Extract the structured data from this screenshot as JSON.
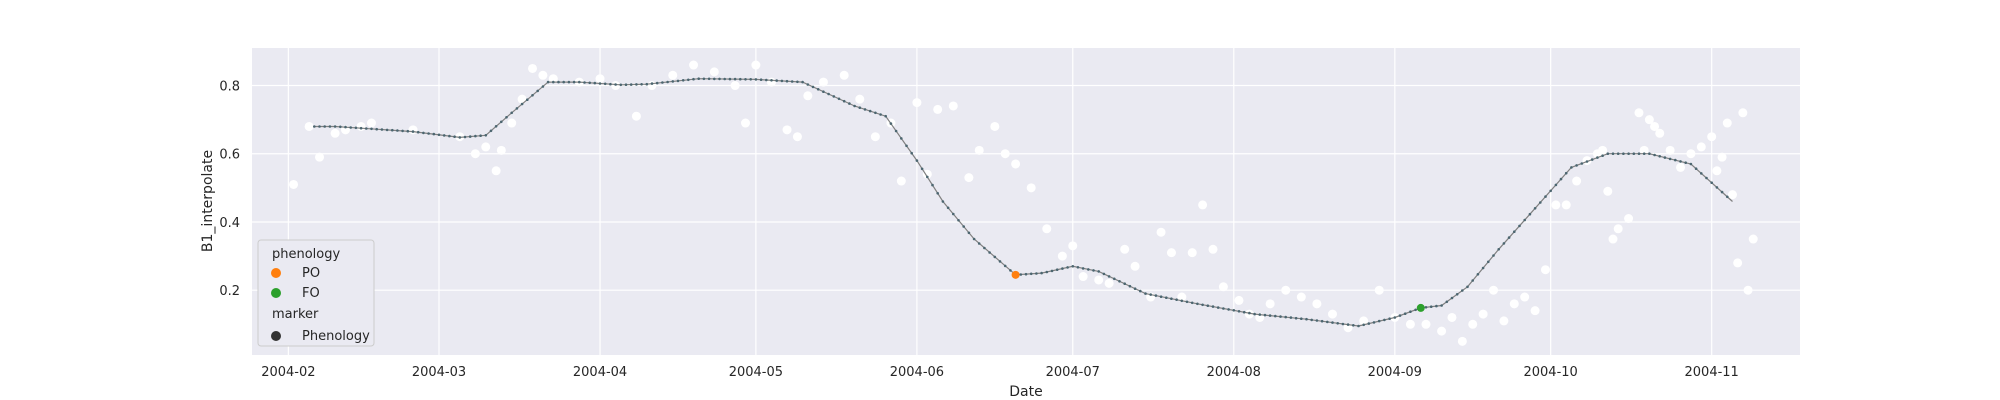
{
  "chart_data": {
    "type": "scatter",
    "xlabel": "Date",
    "ylabel": "B1_interpolate",
    "grid": true,
    "x_ticks": [
      "2004-02",
      "2004-03",
      "2004-04",
      "2004-05",
      "2004-06",
      "2004-07",
      "2004-08",
      "2004-09",
      "2004-10",
      "2004-11"
    ],
    "y_ticks": [
      "0.2",
      "0.4",
      "0.6",
      "0.8"
    ],
    "xlim": [
      "2004-01-25",
      "2004-11-18"
    ],
    "ylim": [
      0.01,
      0.91
    ],
    "legend": {
      "placement": "lower-left",
      "title_hue": "phenology",
      "title_marker": "marker",
      "entries": [
        {
          "label": "PO",
          "color": "#ff7f0e"
        },
        {
          "label": "FO",
          "color": "#2ca02c"
        },
        {
          "label": "Phenology",
          "color": "#333333"
        }
      ]
    },
    "colors": {
      "background": "#eaeaf2",
      "grid": "#ffffff",
      "scatter": "#ffffff",
      "line": "#808080",
      "smooth_markers": "#4c6670"
    },
    "series": [
      {
        "type": "line",
        "values": [
          [
            "2004-02-06",
            0.68
          ],
          [
            "2004-02-10",
            0.68
          ],
          [
            "2004-02-15",
            0.675
          ],
          [
            "2004-02-25",
            0.665
          ],
          [
            "2004-03-05",
            0.648
          ],
          [
            "2004-03-10",
            0.654
          ],
          [
            "2004-03-15",
            0.72
          ],
          [
            "2004-03-22",
            0.81
          ],
          [
            "2004-03-28",
            0.81
          ],
          [
            "2004-04-05",
            0.802
          ],
          [
            "2004-04-10",
            0.804
          ],
          [
            "2004-04-20",
            0.82
          ],
          [
            "2004-05-01",
            0.818
          ],
          [
            "2004-05-10",
            0.81
          ],
          [
            "2004-05-20",
            0.74
          ],
          [
            "2004-05-26",
            0.71
          ],
          [
            "2004-06-01",
            0.58
          ],
          [
            "2004-06-06",
            0.46
          ],
          [
            "2004-06-12",
            0.35
          ],
          [
            "2004-06-20",
            0.245
          ],
          [
            "2004-06-25",
            0.25
          ],
          [
            "2004-07-01",
            0.27
          ],
          [
            "2004-07-06",
            0.255
          ],
          [
            "2004-07-15",
            0.19
          ],
          [
            "2004-07-25",
            0.16
          ],
          [
            "2004-08-05",
            0.13
          ],
          [
            "2004-08-15",
            0.115
          ],
          [
            "2004-08-25",
            0.095
          ],
          [
            "2004-09-01",
            0.12
          ],
          [
            "2004-09-06",
            0.148
          ],
          [
            "2004-09-10",
            0.155
          ],
          [
            "2004-09-15",
            0.21
          ],
          [
            "2004-09-21",
            0.32
          ],
          [
            "2004-09-28",
            0.44
          ],
          [
            "2004-10-05",
            0.56
          ],
          [
            "2004-10-12",
            0.6
          ],
          [
            "2004-10-20",
            0.6
          ],
          [
            "2004-10-28",
            0.57
          ],
          [
            "2004-11-05",
            0.46
          ]
        ]
      },
      {
        "type": "scatter",
        "values": [
          [
            "2004-02-02",
            0.51
          ],
          [
            "2004-02-05",
            0.68
          ],
          [
            "2004-02-07",
            0.59
          ],
          [
            "2004-02-10",
            0.66
          ],
          [
            "2004-02-12",
            0.67
          ],
          [
            "2004-02-15",
            0.68
          ],
          [
            "2004-02-17",
            0.69
          ],
          [
            "2004-02-25",
            0.67
          ],
          [
            "2004-03-05",
            0.65
          ],
          [
            "2004-03-08",
            0.6
          ],
          [
            "2004-03-10",
            0.62
          ],
          [
            "2004-03-12",
            0.55
          ],
          [
            "2004-03-13",
            0.61
          ],
          [
            "2004-03-15",
            0.69
          ],
          [
            "2004-03-17",
            0.76
          ],
          [
            "2004-03-19",
            0.85
          ],
          [
            "2004-03-21",
            0.83
          ],
          [
            "2004-03-23",
            0.82
          ],
          [
            "2004-03-28",
            0.81
          ],
          [
            "2004-04-01",
            0.82
          ],
          [
            "2004-04-04",
            0.8
          ],
          [
            "2004-04-08",
            0.71
          ],
          [
            "2004-04-11",
            0.8
          ],
          [
            "2004-04-15",
            0.83
          ],
          [
            "2004-04-19",
            0.86
          ],
          [
            "2004-04-23",
            0.84
          ],
          [
            "2004-04-27",
            0.8
          ],
          [
            "2004-04-29",
            0.69
          ],
          [
            "2004-05-01",
            0.86
          ],
          [
            "2004-05-04",
            0.81
          ],
          [
            "2004-05-07",
            0.67
          ],
          [
            "2004-05-09",
            0.65
          ],
          [
            "2004-05-11",
            0.77
          ],
          [
            "2004-05-14",
            0.81
          ],
          [
            "2004-05-18",
            0.83
          ],
          [
            "2004-05-21",
            0.76
          ],
          [
            "2004-05-24",
            0.65
          ],
          [
            "2004-05-27",
            0.69
          ],
          [
            "2004-05-29",
            0.52
          ],
          [
            "2004-06-01",
            0.75
          ],
          [
            "2004-06-03",
            0.54
          ],
          [
            "2004-06-05",
            0.73
          ],
          [
            "2004-06-08",
            0.74
          ],
          [
            "2004-06-11",
            0.53
          ],
          [
            "2004-06-13",
            0.61
          ],
          [
            "2004-06-16",
            0.68
          ],
          [
            "2004-06-18",
            0.6
          ],
          [
            "2004-06-20",
            0.57
          ],
          [
            "2004-06-23",
            0.5
          ],
          [
            "2004-06-26",
            0.38
          ],
          [
            "2004-06-29",
            0.3
          ],
          [
            "2004-07-01",
            0.33
          ],
          [
            "2004-07-03",
            0.24
          ],
          [
            "2004-07-06",
            0.23
          ],
          [
            "2004-07-08",
            0.22
          ],
          [
            "2004-07-11",
            0.32
          ],
          [
            "2004-07-13",
            0.27
          ],
          [
            "2004-07-16",
            0.18
          ],
          [
            "2004-07-18",
            0.37
          ],
          [
            "2004-07-20",
            0.31
          ],
          [
            "2004-07-22",
            0.18
          ],
          [
            "2004-07-24",
            0.31
          ],
          [
            "2004-07-26",
            0.45
          ],
          [
            "2004-07-28",
            0.32
          ],
          [
            "2004-07-30",
            0.21
          ],
          [
            "2004-08-02",
            0.17
          ],
          [
            "2004-08-04",
            0.13
          ],
          [
            "2004-08-06",
            0.12
          ],
          [
            "2004-08-08",
            0.16
          ],
          [
            "2004-08-11",
            0.2
          ],
          [
            "2004-08-14",
            0.18
          ],
          [
            "2004-08-17",
            0.16
          ],
          [
            "2004-08-20",
            0.13
          ],
          [
            "2004-08-23",
            0.09
          ],
          [
            "2004-08-26",
            0.11
          ],
          [
            "2004-08-29",
            0.2
          ],
          [
            "2004-09-01",
            0.12
          ],
          [
            "2004-09-04",
            0.1
          ],
          [
            "2004-09-07",
            0.1
          ],
          [
            "2004-09-10",
            0.08
          ],
          [
            "2004-09-12",
            0.12
          ],
          [
            "2004-09-14",
            0.05
          ],
          [
            "2004-09-16",
            0.1
          ],
          [
            "2004-09-18",
            0.13
          ],
          [
            "2004-09-20",
            0.2
          ],
          [
            "2004-09-22",
            0.11
          ],
          [
            "2004-09-24",
            0.16
          ],
          [
            "2004-09-26",
            0.18
          ],
          [
            "2004-09-28",
            0.14
          ],
          [
            "2004-09-30",
            0.26
          ],
          [
            "2004-10-02",
            0.45
          ],
          [
            "2004-10-04",
            0.45
          ],
          [
            "2004-10-06",
            0.52
          ],
          [
            "2004-10-08",
            0.58
          ],
          [
            "2004-10-10",
            0.6
          ],
          [
            "2004-10-11",
            0.61
          ],
          [
            "2004-10-12",
            0.49
          ],
          [
            "2004-10-13",
            0.35
          ],
          [
            "2004-10-14",
            0.38
          ],
          [
            "2004-10-16",
            0.41
          ],
          [
            "2004-10-18",
            0.72
          ],
          [
            "2004-10-19",
            0.61
          ],
          [
            "2004-10-20",
            0.7
          ],
          [
            "2004-10-21",
            0.68
          ],
          [
            "2004-10-22",
            0.66
          ],
          [
            "2004-10-24",
            0.61
          ],
          [
            "2004-10-26",
            0.56
          ],
          [
            "2004-10-28",
            0.6
          ],
          [
            "2004-10-30",
            0.62
          ],
          [
            "2004-11-01",
            0.65
          ],
          [
            "2004-11-02",
            0.55
          ],
          [
            "2004-11-03",
            0.59
          ],
          [
            "2004-11-04",
            0.69
          ],
          [
            "2004-11-05",
            0.48
          ],
          [
            "2004-11-06",
            0.28
          ],
          [
            "2004-11-07",
            0.72
          ],
          [
            "2004-11-08",
            0.2
          ],
          [
            "2004-11-09",
            0.35
          ]
        ]
      },
      {
        "type": "marker",
        "name": "PO",
        "color": "#ff7f0e",
        "values": [
          [
            "2004-06-20",
            0.245
          ]
        ]
      },
      {
        "type": "marker",
        "name": "FO",
        "color": "#2ca02c",
        "values": [
          [
            "2004-09-06",
            0.148
          ]
        ]
      }
    ]
  }
}
